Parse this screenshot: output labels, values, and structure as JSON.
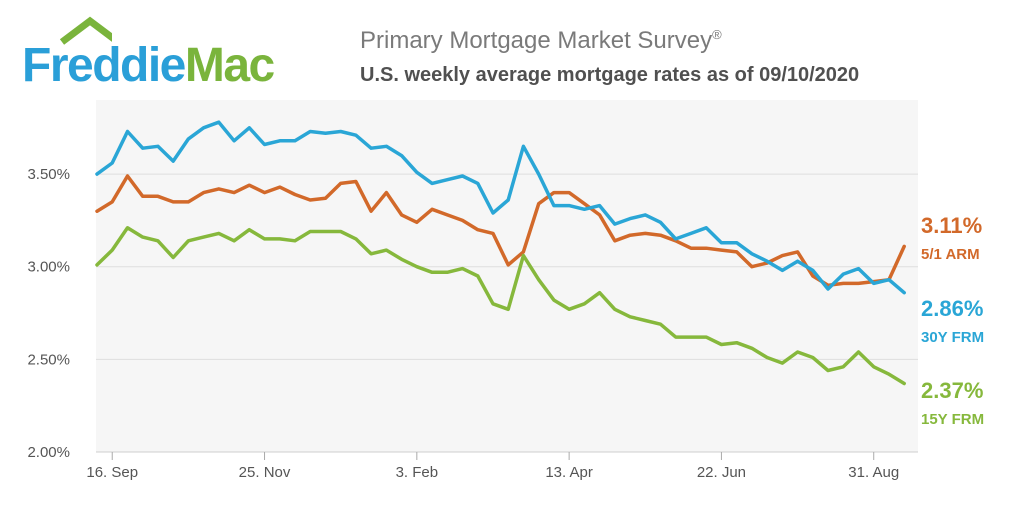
{
  "header": {
    "logo_word1": "Freddie",
    "logo_word2": "Mac",
    "title": "Primary Mortgage Market Survey",
    "title_mark": "®",
    "subtitle": "U.S. weekly average mortgage rates as of 09/10/2020"
  },
  "colors": {
    "arm": "#d2692a",
    "frm30": "#2aa6d6",
    "frm15": "#86b83c",
    "plot_bg": "#f6f6f6",
    "grid": "#dedede",
    "logo_blue": "#2a9fd8",
    "logo_green": "#7ab43c"
  },
  "chart_data": {
    "type": "line",
    "title": "U.S. weekly average mortgage rates as of 09/10/2020",
    "ylim": [
      2.0,
      3.9
    ],
    "yticks": [
      2.0,
      2.5,
      3.0,
      3.5
    ],
    "ytick_labels": [
      "2.00%",
      "2.50%",
      "3.00%",
      "3.50%"
    ],
    "xtick_labels": [
      "16. Sep",
      "25. Nov",
      "3. Feb",
      "13. Apr",
      "22. Jun",
      "31. Aug"
    ],
    "xtick_index": [
      1,
      11,
      21,
      31,
      41,
      51
    ],
    "grid": true,
    "series": [
      {
        "key": "arm",
        "name": "5/1 ARM",
        "end_label": "3.11%",
        "values": [
          3.3,
          3.35,
          3.49,
          3.38,
          3.38,
          3.35,
          3.35,
          3.4,
          3.42,
          3.4,
          3.44,
          3.4,
          3.43,
          3.39,
          3.36,
          3.37,
          3.45,
          3.46,
          3.3,
          3.4,
          3.28,
          3.24,
          3.31,
          3.28,
          3.25,
          3.2,
          3.18,
          3.01,
          3.08,
          3.34,
          3.4,
          3.4,
          3.34,
          3.28,
          3.14,
          3.17,
          3.18,
          3.17,
          3.14,
          3.1,
          3.1,
          3.09,
          3.08,
          3.0,
          3.02,
          3.06,
          3.08,
          2.95,
          2.9,
          2.91,
          2.91,
          2.92,
          2.93,
          3.11
        ]
      },
      {
        "key": "frm30",
        "name": "30Y FRM",
        "end_label": "2.86%",
        "values": [
          3.5,
          3.56,
          3.73,
          3.64,
          3.65,
          3.57,
          3.69,
          3.75,
          3.78,
          3.68,
          3.75,
          3.66,
          3.68,
          3.68,
          3.73,
          3.72,
          3.73,
          3.71,
          3.64,
          3.65,
          3.6,
          3.51,
          3.45,
          3.47,
          3.49,
          3.45,
          3.29,
          3.36,
          3.65,
          3.5,
          3.33,
          3.33,
          3.31,
          3.33,
          3.23,
          3.26,
          3.28,
          3.24,
          3.15,
          3.18,
          3.21,
          3.13,
          3.13,
          3.07,
          3.03,
          2.98,
          3.03,
          2.98,
          2.88,
          2.96,
          2.99,
          2.91,
          2.93,
          2.86
        ]
      },
      {
        "key": "frm15",
        "name": "15Y FRM",
        "end_label": "2.37%",
        "values": [
          3.01,
          3.09,
          3.21,
          3.16,
          3.14,
          3.05,
          3.14,
          3.16,
          3.18,
          3.14,
          3.2,
          3.15,
          3.15,
          3.14,
          3.19,
          3.19,
          3.19,
          3.15,
          3.07,
          3.09,
          3.04,
          3.0,
          2.97,
          2.97,
          2.99,
          2.95,
          2.8,
          2.77,
          3.06,
          2.93,
          2.82,
          2.77,
          2.8,
          2.86,
          2.77,
          2.73,
          2.71,
          2.69,
          2.62,
          2.62,
          2.62,
          2.58,
          2.59,
          2.56,
          2.51,
          2.48,
          2.54,
          2.51,
          2.44,
          2.46,
          2.54,
          2.46,
          2.42,
          2.37
        ]
      }
    ]
  }
}
